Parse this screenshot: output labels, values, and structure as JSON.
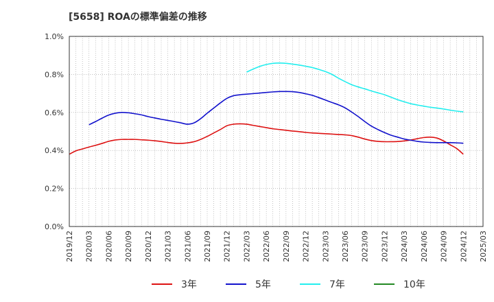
{
  "chart_data": {
    "type": "line",
    "title": "[5658]  ROAの標準偏差の推移",
    "xlabel": "",
    "ylabel": "",
    "ylim": [
      0,
      1.0
    ],
    "y_ticks": [
      "1.0%",
      "0.8%",
      "0.6%",
      "0.4%",
      "0.2%",
      "0.0%"
    ],
    "y_tick_values": [
      1.0,
      0.8,
      0.6,
      0.4,
      0.2,
      0.0
    ],
    "x_ticks": [
      "2019/12",
      "2020/03",
      "2020/06",
      "2020/09",
      "2020/12",
      "2021/03",
      "2021/06",
      "2021/09",
      "2021/12",
      "2022/03",
      "2022/06",
      "2022/09",
      "2022/12",
      "2023/03",
      "2023/06",
      "2023/09",
      "2023/12",
      "2024/03",
      "2024/06",
      "2024/09",
      "2024/12",
      "2025/03"
    ],
    "grid": true,
    "legend_position": "bottom",
    "series": [
      {
        "name": "3年",
        "color": "#dd1111",
        "x": [
          "2019/12",
          "2020/01",
          "2020/02",
          "2020/03",
          "2020/04",
          "2020/05",
          "2020/06",
          "2020/07",
          "2020/08",
          "2020/09",
          "2020/10",
          "2020/11",
          "2020/12",
          "2021/01",
          "2021/02",
          "2021/03",
          "2021/04",
          "2021/05",
          "2021/06",
          "2021/07",
          "2021/08",
          "2021/09",
          "2021/10",
          "2021/11",
          "2021/12",
          "2022/01",
          "2022/02",
          "2022/03",
          "2022/04",
          "2022/05",
          "2022/06",
          "2022/07",
          "2022/08",
          "2022/09",
          "2022/10",
          "2022/11",
          "2022/12",
          "2023/01",
          "2023/02",
          "2023/03",
          "2023/04",
          "2023/05",
          "2023/06",
          "2023/07",
          "2023/08",
          "2023/09",
          "2023/10",
          "2023/11",
          "2023/12",
          "2024/01",
          "2024/02",
          "2024/03",
          "2024/04",
          "2024/05",
          "2024/06",
          "2024/07",
          "2024/08",
          "2024/09",
          "2024/10",
          "2024/11",
          "2024/12"
        ],
        "values": [
          0.38,
          0.398,
          0.408,
          0.418,
          0.427,
          0.437,
          0.448,
          0.455,
          0.458,
          0.458,
          0.458,
          0.456,
          0.454,
          0.451,
          0.447,
          0.442,
          0.438,
          0.437,
          0.44,
          0.446,
          0.458,
          0.474,
          0.492,
          0.51,
          0.53,
          0.538,
          0.54,
          0.538,
          0.532,
          0.526,
          0.52,
          0.514,
          0.51,
          0.506,
          0.502,
          0.499,
          0.495,
          0.492,
          0.49,
          0.488,
          0.486,
          0.484,
          0.482,
          0.478,
          0.47,
          0.46,
          0.452,
          0.448,
          0.446,
          0.446,
          0.447,
          0.45,
          0.455,
          0.462,
          0.468,
          0.47,
          0.465,
          0.45,
          0.43,
          0.41,
          0.38
        ]
      },
      {
        "name": "5年",
        "color": "#1111cc",
        "x": [
          "2020/03",
          "2020/04",
          "2020/05",
          "2020/06",
          "2020/07",
          "2020/08",
          "2020/09",
          "2020/10",
          "2020/11",
          "2020/12",
          "2021/01",
          "2021/02",
          "2021/03",
          "2021/04",
          "2021/05",
          "2021/06",
          "2021/07",
          "2021/08",
          "2021/09",
          "2021/10",
          "2021/11",
          "2021/12",
          "2022/01",
          "2022/02",
          "2022/03",
          "2022/04",
          "2022/05",
          "2022/06",
          "2022/07",
          "2022/08",
          "2022/09",
          "2022/10",
          "2022/11",
          "2022/12",
          "2023/01",
          "2023/02",
          "2023/03",
          "2023/04",
          "2023/05",
          "2023/06",
          "2023/07",
          "2023/08",
          "2023/09",
          "2023/10",
          "2023/11",
          "2023/12",
          "2024/01",
          "2024/02",
          "2024/03",
          "2024/04",
          "2024/05",
          "2024/06",
          "2024/07",
          "2024/08",
          "2024/09",
          "2024/10",
          "2024/11",
          "2024/12"
        ],
        "values": [
          0.535,
          0.552,
          0.57,
          0.586,
          0.596,
          0.6,
          0.598,
          0.593,
          0.587,
          0.578,
          0.571,
          0.564,
          0.558,
          0.552,
          0.545,
          0.538,
          0.545,
          0.567,
          0.596,
          0.623,
          0.65,
          0.674,
          0.688,
          0.693,
          0.696,
          0.699,
          0.702,
          0.705,
          0.708,
          0.71,
          0.71,
          0.709,
          0.705,
          0.698,
          0.69,
          0.678,
          0.665,
          0.652,
          0.64,
          0.624,
          0.602,
          0.578,
          0.552,
          0.528,
          0.51,
          0.494,
          0.48,
          0.47,
          0.46,
          0.454,
          0.448,
          0.444,
          0.442,
          0.441,
          0.441,
          0.441,
          0.44,
          0.438
        ]
      },
      {
        "name": "7年",
        "color": "#22eeee",
        "x": [
          "2022/03",
          "2022/04",
          "2022/05",
          "2022/06",
          "2022/07",
          "2022/08",
          "2022/09",
          "2022/10",
          "2022/11",
          "2022/12",
          "2023/01",
          "2023/02",
          "2023/03",
          "2023/04",
          "2023/05",
          "2023/06",
          "2023/07",
          "2023/08",
          "2023/09",
          "2023/10",
          "2023/11",
          "2023/12",
          "2024/01",
          "2024/02",
          "2024/03",
          "2024/04",
          "2024/05",
          "2024/06",
          "2024/07",
          "2024/08",
          "2024/09",
          "2024/10",
          "2024/11",
          "2024/12"
        ],
        "values": [
          0.812,
          0.828,
          0.842,
          0.852,
          0.858,
          0.86,
          0.858,
          0.854,
          0.849,
          0.843,
          0.836,
          0.826,
          0.815,
          0.8,
          0.78,
          0.762,
          0.746,
          0.734,
          0.724,
          0.713,
          0.703,
          0.693,
          0.68,
          0.667,
          0.656,
          0.646,
          0.639,
          0.633,
          0.627,
          0.623,
          0.618,
          0.612,
          0.607,
          0.603
        ]
      },
      {
        "name": "10年",
        "color": "#228822",
        "x": [],
        "values": []
      }
    ]
  }
}
